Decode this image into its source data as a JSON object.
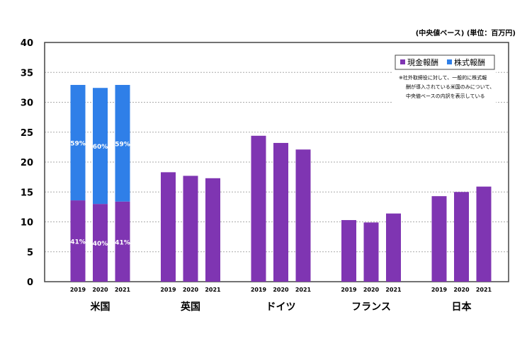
{
  "chart_data": {
    "type": "bar",
    "unit_note": "(中央値ベース) (単位：百万円)",
    "ylim": [
      0,
      40
    ],
    "yticks": [
      0,
      5,
      10,
      15,
      20,
      25,
      30,
      35,
      40
    ],
    "grid": true,
    "legend_position": "top-right",
    "legend": [
      {
        "name": "現金報酬",
        "color": "#7f35b2"
      },
      {
        "name": "株式報酬",
        "color": "#2f7fe8"
      }
    ],
    "note_lines": [
      "※社外取締役に対して、一般的に株式報",
      "酬が導入されている米国のみについて、",
      "中央値ベースの内訳を表示している"
    ],
    "groups": [
      {
        "name": "米国",
        "years": [
          "2019",
          "2020",
          "2021"
        ],
        "cash": [
          13.6,
          13.0,
          13.4
        ],
        "stock": [
          19.3,
          19.4,
          19.5
        ],
        "cash_pct": [
          "41%",
          "40%",
          "41%"
        ],
        "stock_pct": [
          "59%",
          "60%",
          "59%"
        ]
      },
      {
        "name": "英国",
        "years": [
          "2019",
          "2020",
          "2021"
        ],
        "cash": [
          18.3,
          17.7,
          17.3
        ]
      },
      {
        "name": "ドイツ",
        "years": [
          "2019",
          "2020",
          "2021"
        ],
        "cash": [
          24.4,
          23.2,
          22.1
        ]
      },
      {
        "name": "フランス",
        "years": [
          "2019",
          "2020",
          "2021"
        ],
        "cash": [
          10.3,
          9.9,
          11.4
        ]
      },
      {
        "name": "日本",
        "years": [
          "2019",
          "2020",
          "2021"
        ],
        "cash": [
          14.3,
          15.0,
          15.9
        ]
      }
    ]
  }
}
